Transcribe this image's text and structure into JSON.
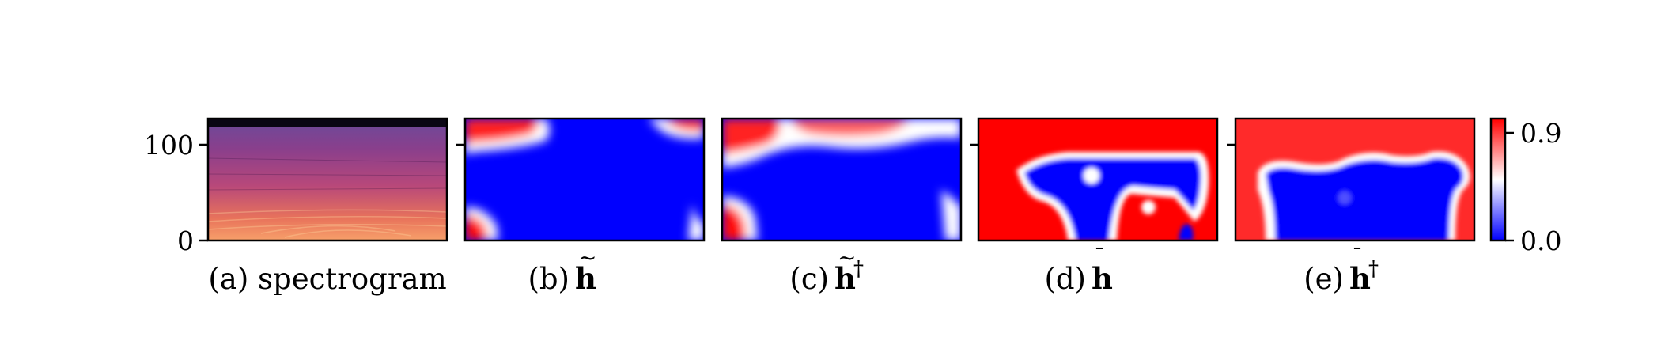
{
  "chart_data": {
    "type": "heatmap",
    "y_axis": {
      "ticks": [
        0,
        100
      ],
      "ylim": [
        0,
        128
      ]
    },
    "colorbar": {
      "ticks": [
        "0.9",
        "0.0"
      ],
      "range": [
        0.0,
        0.9
      ],
      "colors": {
        "low": "#0000ff",
        "mid": "#ffffff",
        "high": "#ff0000"
      }
    },
    "panels": [
      {
        "id": "a",
        "caption_prefix": "(a)",
        "caption_text": "spectrogram",
        "kind": "spectrogram",
        "colormap": "magma"
      },
      {
        "id": "b",
        "caption_prefix": "(b)",
        "caption_letter": "h",
        "accent": "~",
        "superscript": "",
        "kind": "heatmap"
      },
      {
        "id": "c",
        "caption_prefix": "(c)",
        "caption_letter": "h",
        "accent": "~",
        "superscript": "†",
        "kind": "heatmap"
      },
      {
        "id": "d",
        "caption_prefix": "(d)",
        "caption_letter": "h",
        "accent": "¯",
        "superscript": "",
        "kind": "heatmap"
      },
      {
        "id": "e",
        "caption_prefix": "(e)",
        "caption_letter": "h",
        "accent": "¯",
        "superscript": "†",
        "kind": "heatmap"
      }
    ]
  }
}
